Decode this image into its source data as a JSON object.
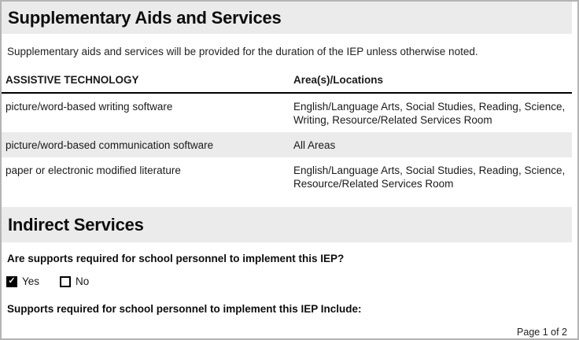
{
  "supplementary": {
    "title": "Supplementary Aids and Services",
    "intro": "Supplementary aids and services will be provided for the duration of the IEP unless otherwise noted."
  },
  "table": {
    "headers": [
      "ASSISTIVE TECHNOLOGY",
      "Area(s)/Locations"
    ],
    "rows": [
      {
        "technology": "picture/word-based writing software",
        "areas": "English/Language Arts, Social Studies, Reading, Science, Writing, Resource/Related Services Room",
        "shaded": false
      },
      {
        "technology": "picture/word-based communication software",
        "areas": "All Areas",
        "shaded": true
      },
      {
        "technology": "paper or electronic modified literature",
        "areas": "English/Language Arts, Social Studies, Reading, Science, Resource/Related Services Room",
        "shaded": false
      }
    ]
  },
  "indirect_services": {
    "title": "Indirect Services",
    "question": "Are supports required for school personnel to implement this IEP?",
    "options": [
      {
        "label": "Yes",
        "checked": true
      },
      {
        "label": "No",
        "checked": false
      }
    ],
    "supports_heading": "Supports required for school personnel to implement this IEP Include:"
  },
  "footer": {
    "page_indicator": "Page 1 of 2"
  },
  "icons": {
    "checkmark": "✓"
  },
  "colors": {
    "band_background": "#ebebeb",
    "row_shade": "#ebebeb",
    "page_border": "#b4b4b4",
    "checked_checkbox_background": "#000000",
    "header_rule": "#000000"
  }
}
